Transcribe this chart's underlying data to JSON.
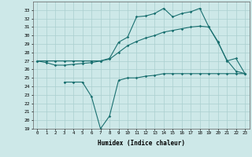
{
  "xlabel": "Humidex (Indice chaleur)",
  "background_color": "#cde8e8",
  "grid_color": "#aacfcf",
  "line_color": "#1a7070",
  "ylim": [
    19,
    34
  ],
  "xlim": [
    -0.5,
    23.5
  ],
  "yticks": [
    19,
    20,
    21,
    22,
    23,
    24,
    25,
    26,
    27,
    28,
    29,
    30,
    31,
    32,
    33
  ],
  "xticks": [
    0,
    1,
    2,
    3,
    4,
    5,
    6,
    7,
    8,
    9,
    10,
    11,
    12,
    13,
    14,
    15,
    16,
    17,
    18,
    19,
    20,
    21,
    22,
    23
  ],
  "line1_x": [
    0,
    1,
    2,
    3,
    4,
    5,
    6,
    7,
    8,
    9,
    10,
    11,
    12,
    13,
    14,
    15,
    16,
    17,
    18,
    19,
    20,
    21,
    22,
    23
  ],
  "line1_y": [
    27.0,
    26.8,
    26.5,
    26.5,
    26.6,
    26.7,
    26.8,
    27.0,
    27.3,
    29.2,
    29.8,
    32.2,
    32.3,
    32.6,
    33.2,
    32.2,
    32.6,
    32.8,
    33.2,
    31.0,
    29.3,
    27.0,
    27.3,
    25.5
  ],
  "line2_x": [
    0,
    1,
    2,
    3,
    4,
    5,
    6,
    7,
    8,
    9,
    10,
    11,
    12,
    13,
    14,
    15,
    16,
    17,
    18,
    19,
    20,
    21,
    22,
    23
  ],
  "line2_y": [
    27.0,
    27.0,
    27.0,
    27.0,
    27.0,
    27.0,
    27.0,
    27.0,
    27.2,
    28.0,
    28.8,
    29.3,
    29.7,
    30.0,
    30.4,
    30.6,
    30.8,
    31.0,
    31.1,
    31.0,
    29.2,
    27.1,
    25.8,
    25.5
  ],
  "line3_x": [
    3,
    4,
    5,
    6,
    7,
    8,
    9,
    10,
    11,
    12,
    13,
    14,
    15,
    16,
    17,
    18,
    19,
    20,
    21,
    22,
    23
  ],
  "line3_y": [
    24.5,
    24.5,
    24.5,
    22.8,
    19.0,
    20.5,
    24.7,
    25.0,
    25.0,
    25.2,
    25.3,
    25.5,
    25.5,
    25.5,
    25.5,
    25.5,
    25.5,
    25.5,
    25.5,
    25.5,
    25.5
  ]
}
